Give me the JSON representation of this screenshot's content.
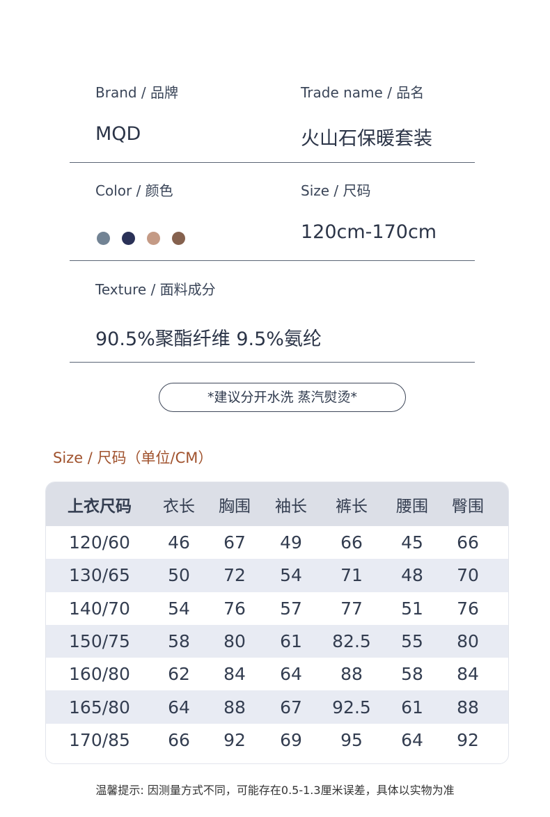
{
  "brand": {
    "label": "Brand / 品牌",
    "value": "MQD"
  },
  "trade_name": {
    "label": "Trade name / 品名",
    "value": "火山石保暖套装"
  },
  "color": {
    "label": "Color / 颜色",
    "swatches": [
      "#728394",
      "#2a3157",
      "#c49a85",
      "#85614e"
    ]
  },
  "size": {
    "label": "Size / 尺码",
    "value": "120cm-170cm"
  },
  "texture": {
    "label": "Texture / 面料成分",
    "value": "90.5%聚酯纤维 9.5%氨纶"
  },
  "wash_note": "*建议分开水洗  蒸汽熨烫*",
  "size_table": {
    "title": "Size / 尺码（单位/CM）",
    "headers": [
      "上衣尺码",
      "衣长",
      "胸围",
      "袖长",
      "裤长",
      "腰围",
      "臀围"
    ],
    "rows": [
      [
        "120/60",
        "46",
        "67",
        "49",
        "66",
        "45",
        "66"
      ],
      [
        "130/65",
        "50",
        "72",
        "54",
        "71",
        "48",
        "70"
      ],
      [
        "140/70",
        "54",
        "76",
        "57",
        "77",
        "51",
        "76"
      ],
      [
        "150/75",
        "58",
        "80",
        "61",
        "82.5",
        "55",
        "80"
      ],
      [
        "160/80",
        "62",
        "84",
        "64",
        "88",
        "58",
        "84"
      ],
      [
        "165/80",
        "64",
        "88",
        "67",
        "92.5",
        "61",
        "88"
      ],
      [
        "170/85",
        "66",
        "92",
        "69",
        "95",
        "64",
        "92"
      ]
    ]
  },
  "footer_note": "温馨提示: 因测量方式不同，可能存在0.5-1.3厘米误差，具体以实物为准"
}
